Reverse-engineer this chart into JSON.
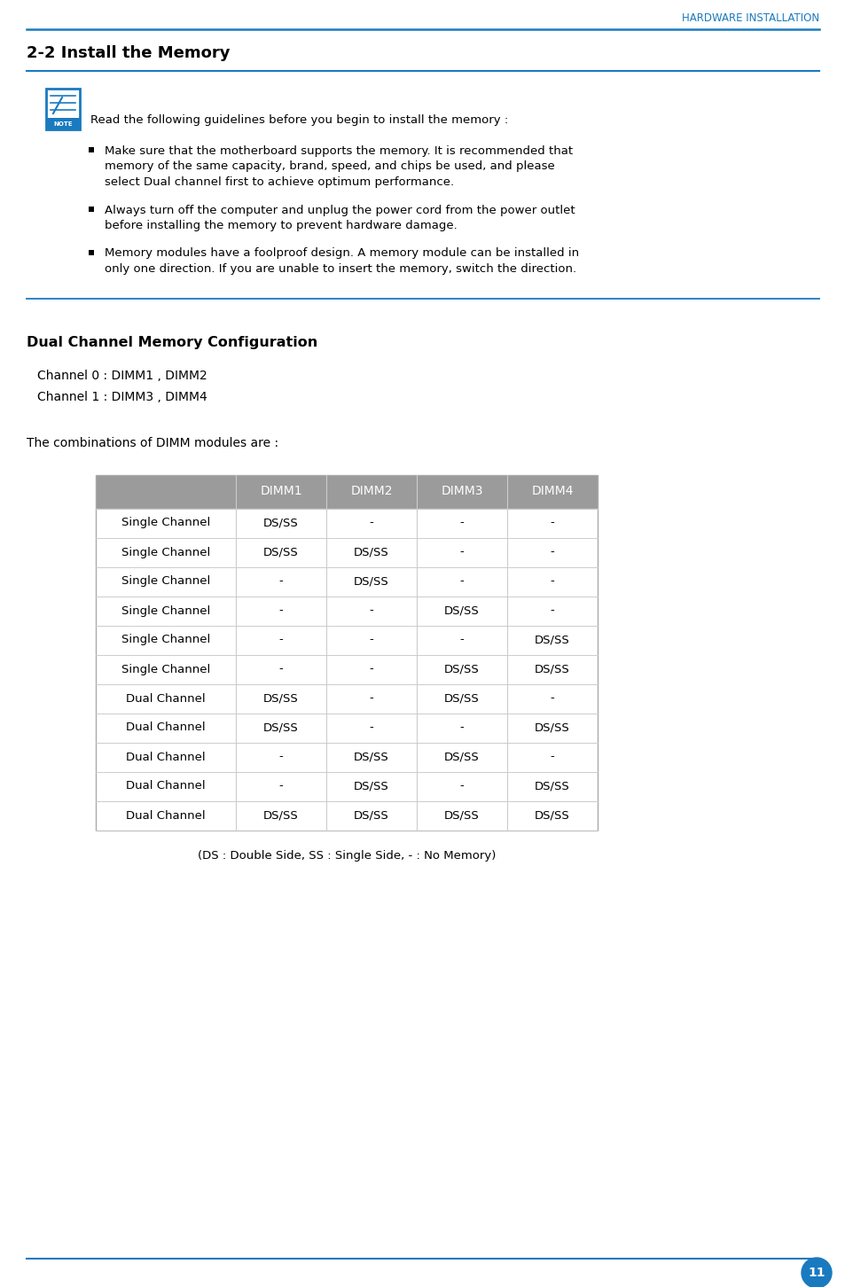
{
  "page_title_right": "HARDWARE INSTALLATION",
  "section_title": "2-2 Install the Memory",
  "note_text": "Read the following guidelines before you begin to install the memory :",
  "bullets": [
    [
      "Make sure that the motherboard supports the memory. It is recommended that",
      "memory of the same capacity, brand, speed, and chips be used, and please",
      "select Dual channel first to achieve optimum performance."
    ],
    [
      "Always turn off the computer and unplug the power cord from the power outlet",
      "before installing the memory to prevent hardware damage."
    ],
    [
      "Memory modules have a foolproof design. A memory module can be installed in",
      "only one direction. If you are unable to insert the memory, switch the direction."
    ]
  ],
  "dual_channel_title": "Dual Channel Memory Configuration",
  "channel_lines": [
    "Channel 0 : DIMM1 , DIMM2",
    "Channel 1 : DIMM3 , DIMM4"
  ],
  "combinations_text": "The combinations of DIMM modules are :",
  "table_headers": [
    "",
    "DIMM1",
    "DIMM2",
    "DIMM3",
    "DIMM4"
  ],
  "table_rows": [
    [
      "Single Channel",
      "DS/SS",
      "-",
      "-",
      "-"
    ],
    [
      "Single Channel",
      "DS/SS",
      "DS/SS",
      "-",
      "-"
    ],
    [
      "Single Channel",
      "-",
      "DS/SS",
      "-",
      "-"
    ],
    [
      "Single Channel",
      "-",
      "-",
      "DS/SS",
      "-"
    ],
    [
      "Single Channel",
      "-",
      "-",
      "-",
      "DS/SS"
    ],
    [
      "Single Channel",
      "-",
      "-",
      "DS/SS",
      "DS/SS"
    ],
    [
      "Dual Channel",
      "DS/SS",
      "-",
      "DS/SS",
      "-"
    ],
    [
      "Dual Channel",
      "DS/SS",
      "-",
      "-",
      "DS/SS"
    ],
    [
      "Dual Channel",
      "-",
      "DS/SS",
      "DS/SS",
      "-"
    ],
    [
      "Dual Channel",
      "-",
      "DS/SS",
      "-",
      "DS/SS"
    ],
    [
      "Dual Channel",
      "DS/SS",
      "DS/SS",
      "DS/SS",
      "DS/SS"
    ]
  ],
  "table_footnote": "(DS : Double Side, SS : Single Side, - : No Memory)",
  "page_number": "11",
  "blue_color": "#1a7abf",
  "header_bg": "#9b9b9b",
  "line_color": "#aaaaaa"
}
